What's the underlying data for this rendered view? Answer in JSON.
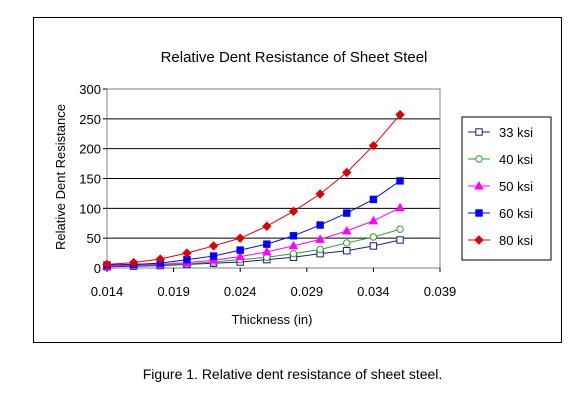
{
  "caption": "Figure 1. Relative dent resistance of sheet steel.",
  "chart_data": {
    "type": "line",
    "title": "Relative Dent Resistance of Sheet Steel",
    "xlabel": "Thickness (in)",
    "ylabel": "Relative Dent Resistance",
    "xlim": [
      0.014,
      0.039
    ],
    "ylim": [
      0,
      300
    ],
    "xticks": [
      0.014,
      0.019,
      0.024,
      0.029,
      0.034,
      0.039
    ],
    "xtick_labels": [
      "0.014",
      "0.019",
      "0.024",
      "0.029",
      "0.034",
      "0.039"
    ],
    "yticks": [
      0,
      50,
      100,
      150,
      200,
      250,
      300
    ],
    "ytick_labels": [
      "0",
      "50",
      "100",
      "150",
      "200",
      "250",
      "300"
    ],
    "grid": "horizontal",
    "legend_position": "right",
    "x": [
      0.014,
      0.016,
      0.018,
      0.02,
      0.022,
      0.024,
      0.026,
      0.028,
      0.03,
      0.032,
      0.034,
      0.036
    ],
    "series": [
      {
        "name": "33 ksi",
        "color": "#1a1a8c",
        "marker": "square-open",
        "values": [
          2,
          3,
          4,
          6,
          8,
          10,
          14,
          18,
          24,
          29,
          37,
          47
        ]
      },
      {
        "name": "40 ksi",
        "color": "#2e9b2e",
        "marker": "circle-open",
        "values": [
          3,
          4,
          5,
          7,
          10,
          14,
          18,
          24,
          31,
          42,
          52,
          65
        ]
      },
      {
        "name": "50 ksi",
        "color": "#ff00ff",
        "marker": "triangle",
        "values": [
          3,
          5,
          6,
          9,
          13,
          19,
          27,
          37,
          48,
          62,
          79,
          101
        ]
      },
      {
        "name": "60 ksi",
        "color": "#0000ff",
        "marker": "square",
        "values": [
          5,
          6,
          8,
          14,
          20,
          30,
          40,
          54,
          72,
          92,
          115,
          146
        ]
      },
      {
        "name": "80 ksi",
        "color": "#e00000",
        "marker": "diamond",
        "values": [
          6,
          9,
          15,
          25,
          37,
          50,
          70,
          95,
          124,
          160,
          205,
          257
        ]
      }
    ]
  }
}
